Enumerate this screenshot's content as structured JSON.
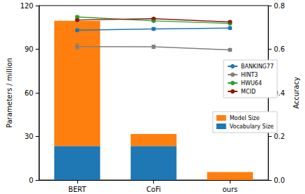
{
  "chart_data": {
    "type": "bar",
    "categories": [
      "BERT",
      "CoFi",
      "ours"
    ],
    "y_label": "Parameters / million",
    "y2_label": "Accuracy",
    "ylim": [
      0,
      120
    ],
    "yticks": [
      0,
      30,
      60,
      90,
      120
    ],
    "y2lim": [
      0,
      0.8
    ],
    "y2ticks": [
      {
        "value": 0,
        "label": "0.0"
      },
      0.2,
      0.4,
      0.6,
      0.8
    ],
    "stacked": true,
    "grid": false,
    "legend": "right",
    "series": [
      {
        "name": "Vocabulary Size",
        "type": "bar",
        "color": "#1f77b4",
        "values": [
          23.4,
          23.4,
          0
        ]
      },
      {
        "name": "Model Size",
        "type": "bar",
        "color": "#ff7f0e",
        "values": [
          86.2,
          8.3,
          5.5
        ]
      },
      {
        "name": "BANKING77",
        "type": "line",
        "axis": "y2",
        "marker": "circle",
        "color": "#1f77b4",
        "values": [
          0.687,
          0.693,
          0.697
        ],
        "errors": [
          0.006,
          0.006,
          0.006
        ]
      },
      {
        "name": "HINT3",
        "type": "line",
        "axis": "y2",
        "marker": "circle",
        "color": "#7f7f7f",
        "values": [
          0.612,
          0.611,
          0.597
        ],
        "errors": [
          0.012,
          0.008,
          0.006
        ]
      },
      {
        "name": "HWU64",
        "type": "line",
        "axis": "y2",
        "marker": "circle",
        "color": "#2ca02c",
        "values": [
          0.748,
          0.73,
          0.718
        ],
        "errors": [
          0.005,
          0.005,
          0.005
        ]
      },
      {
        "name": "MCID",
        "type": "line",
        "axis": "y2",
        "marker": "circle",
        "color": "#8b1a10",
        "values": [
          0.734,
          0.74,
          0.725
        ],
        "errors": [
          0.004,
          0.004,
          0.004
        ]
      }
    ]
  }
}
